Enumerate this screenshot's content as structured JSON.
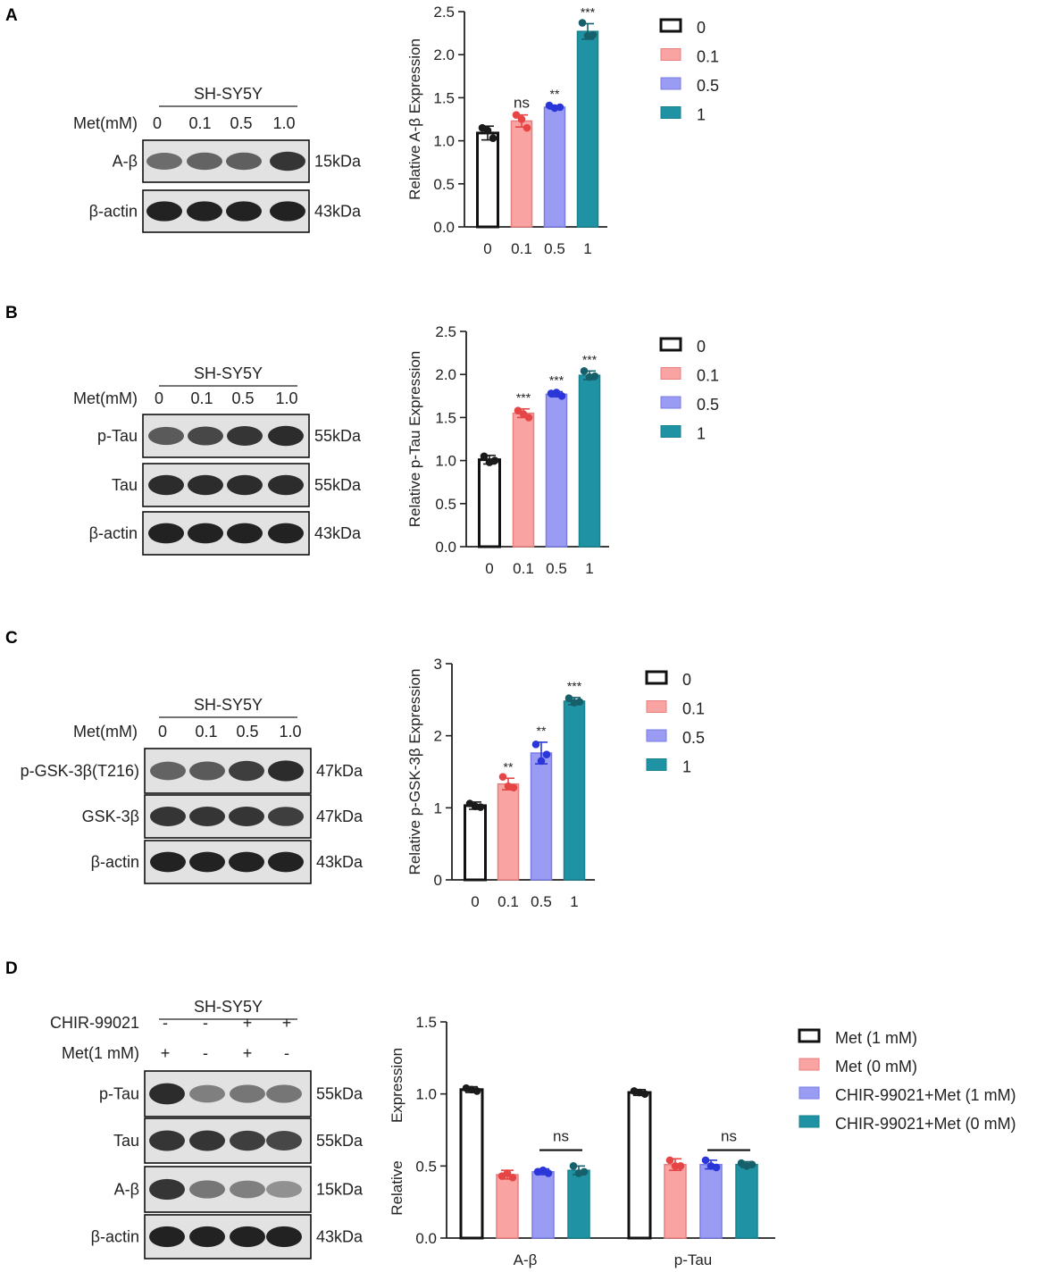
{
  "colors": {
    "c0": "#ffffff",
    "c01": "#f9a3a3",
    "c05": "#9a9cf3",
    "c1": "#1f92a4",
    "dot0": "#1a1a1a",
    "dot01": "#e64545",
    "dot05": "#2b36d9",
    "dot1": "#16606b"
  },
  "panels": {
    "A": {
      "letter": "A",
      "cell_line": "SH-SY5Y",
      "met_label": "Met(mM)",
      "lanes": [
        "0",
        "0.1",
        "0.5",
        "1.0"
      ],
      "blots": [
        {
          "label": "A-β",
          "kda": "15kDa",
          "intensity": [
            0.55,
            0.6,
            0.62,
            0.85
          ]
        },
        {
          "label": "β-actin",
          "kda": "43kDa",
          "intensity": [
            0.95,
            0.95,
            0.95,
            0.95
          ]
        }
      ]
    },
    "B": {
      "letter": "B",
      "cell_line": "SH-SY5Y",
      "met_label": "Met(mM)",
      "lanes": [
        "0",
        "0.1",
        "0.5",
        "1.0"
      ],
      "blots": [
        {
          "label": "p-Tau",
          "kda": "55kDa",
          "intensity": [
            0.65,
            0.75,
            0.85,
            0.9
          ]
        },
        {
          "label": "Tau",
          "kda": "55kDa",
          "intensity": [
            0.9,
            0.9,
            0.9,
            0.9
          ]
        },
        {
          "label": "β-actin",
          "kda": "43kDa",
          "intensity": [
            0.95,
            0.95,
            0.95,
            0.95
          ]
        }
      ]
    },
    "C": {
      "letter": "C",
      "cell_line": "SH-SY5Y",
      "met_label": "Met(mM)",
      "lanes": [
        "0",
        "0.1",
        "0.5",
        "1.0"
      ],
      "blots": [
        {
          "label": "p-GSK-3β(T216)",
          "kda": "47kDa",
          "intensity": [
            0.6,
            0.65,
            0.8,
            0.9
          ]
        },
        {
          "label": "GSK-3β",
          "kda": "47kDa",
          "intensity": [
            0.85,
            0.85,
            0.85,
            0.8
          ]
        },
        {
          "label": "β-actin",
          "kda": "43kDa",
          "intensity": [
            0.95,
            0.95,
            0.95,
            0.95
          ]
        }
      ]
    },
    "D": {
      "letter": "D",
      "cell_line": "SH-SY5Y",
      "treatments": [
        {
          "label": "CHIR-99021",
          "signs": [
            "-",
            "-",
            "+",
            "+"
          ]
        },
        {
          "label": "Met(1 mM)",
          "signs": [
            "+",
            "-",
            "+",
            "-"
          ]
        }
      ],
      "blots": [
        {
          "label": "p-Tau",
          "kda": "55kDa",
          "intensity": [
            0.9,
            0.45,
            0.5,
            0.5
          ]
        },
        {
          "label": "Tau",
          "kda": "55kDa",
          "intensity": [
            0.85,
            0.85,
            0.8,
            0.75
          ]
        },
        {
          "label": "A-β",
          "kda": "15kDa",
          "intensity": [
            0.85,
            0.5,
            0.45,
            0.35
          ]
        },
        {
          "label": "β-actin",
          "kda": "43kDa",
          "intensity": [
            0.95,
            0.95,
            0.95,
            0.95
          ]
        }
      ]
    }
  },
  "chart_data": [
    {
      "type": "bar",
      "panel": "A",
      "categories": [
        "0",
        "0.1",
        "0.5",
        "1"
      ],
      "values": [
        1.09,
        1.23,
        1.39,
        2.27
      ],
      "errors": [
        0.08,
        0.07,
        0.02,
        0.09
      ],
      "points": [
        [
          1.15,
          1.12,
          1.03
        ],
        [
          1.3,
          1.25,
          1.15
        ],
        [
          1.41,
          1.38,
          1.39
        ],
        [
          2.37,
          2.22,
          2.23
        ]
      ],
      "significance": [
        "",
        "ns",
        "**",
        "***"
      ],
      "ylabel": "Relative A-β  Expression",
      "ylim": [
        0,
        2.5
      ],
      "yticks": [
        "0.0",
        "0.5",
        "1.0",
        "1.5",
        "2.0",
        "2.5"
      ],
      "legend": [
        "0",
        "0.1",
        "0.5",
        "1"
      ],
      "legend_position": "right"
    },
    {
      "type": "bar",
      "panel": "B",
      "categories": [
        "0",
        "0.1",
        "0.5",
        "1"
      ],
      "values": [
        1.01,
        1.55,
        1.77,
        1.99
      ],
      "errors": [
        0.05,
        0.05,
        0.03,
        0.05
      ],
      "points": [
        [
          1.05,
          0.98,
          1.0
        ],
        [
          1.58,
          1.54,
          1.5
        ],
        [
          1.78,
          1.79,
          1.75
        ],
        [
          2.04,
          1.97,
          1.98
        ]
      ],
      "significance": [
        "",
        "***",
        "***",
        "***"
      ],
      "ylabel": "Relative p-Tau  Expression",
      "ylim": [
        0,
        2.5
      ],
      "yticks": [
        "0.0",
        "0.5",
        "1.0",
        "1.5",
        "2.0",
        "2.5"
      ],
      "legend": [
        "0",
        "0.1",
        "0.5",
        "1"
      ],
      "legend_position": "right"
    },
    {
      "type": "bar",
      "panel": "C",
      "categories": [
        "0",
        "0.1",
        "0.5",
        "1"
      ],
      "values": [
        1.03,
        1.33,
        1.76,
        2.48
      ],
      "errors": [
        0.05,
        0.08,
        0.15,
        0.05
      ],
      "points": [
        [
          1.06,
          1.02,
          1.01
        ],
        [
          1.43,
          1.3,
          1.28
        ],
        [
          1.88,
          1.65,
          1.74
        ],
        [
          2.52,
          2.46,
          2.47
        ]
      ],
      "significance": [
        "",
        "**",
        "**",
        "***"
      ],
      "ylabel": "Relative p-GSK-3β  Expression",
      "ylim": [
        0,
        3
      ],
      "yticks": [
        "0",
        "1",
        "2",
        "3"
      ],
      "legend": [
        "0",
        "0.1",
        "0.5",
        "1"
      ],
      "legend_position": "right"
    },
    {
      "type": "bar",
      "panel": "D",
      "categories": [
        "A-β",
        "p-Tau"
      ],
      "series": [
        {
          "name": "Met (1 mM)",
          "values": [
            1.03,
            1.01
          ],
          "errors": [
            0.02,
            0.02
          ],
          "points": [
            [
              1.04,
              1.03,
              1.02
            ],
            [
              1.02,
              1.01,
              1.0
            ]
          ]
        },
        {
          "name": "Met (0 mM)",
          "values": [
            0.44,
            0.51
          ],
          "errors": [
            0.03,
            0.04
          ],
          "points": [
            [
              0.43,
              0.45,
              0.42
            ],
            [
              0.54,
              0.5,
              0.5
            ]
          ]
        },
        {
          "name": "CHIR-99021+Met (1 mM)",
          "values": [
            0.46,
            0.51
          ],
          "errors": [
            0.02,
            0.03
          ],
          "points": [
            [
              0.46,
              0.47,
              0.45
            ],
            [
              0.54,
              0.5,
              0.49
            ]
          ]
        },
        {
          "name": "CHIR-99021+Met (0 mM)",
          "values": [
            0.47,
            0.51
          ],
          "errors": [
            0.03,
            0.02
          ],
          "points": [
            [
              0.5,
              0.45,
              0.46
            ],
            [
              0.52,
              0.5,
              0.51
            ]
          ]
        }
      ],
      "comparisons": [
        {
          "category": "A-β",
          "between": [
            2,
            3
          ],
          "label": "ns"
        },
        {
          "category": "p-Tau",
          "between": [
            2,
            3
          ],
          "label": "ns"
        }
      ],
      "ylabel_top": "Expression",
      "ylabel_bottom": "Relative",
      "ylim": [
        0,
        1.5
      ],
      "yticks": [
        "0.0",
        "0.5",
        "1.0",
        "1.5"
      ],
      "legend_position": "right"
    }
  ]
}
